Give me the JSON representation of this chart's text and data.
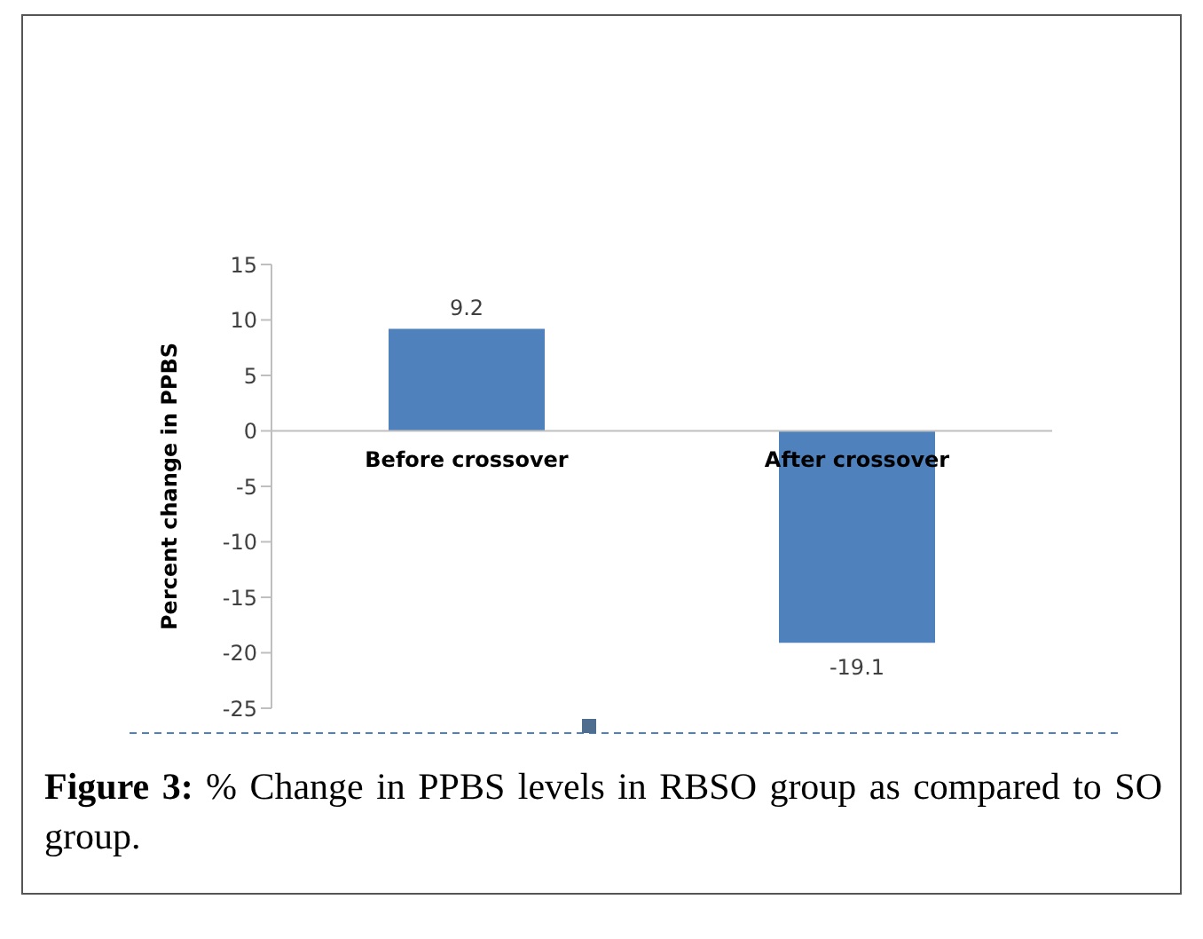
{
  "chart_data": {
    "type": "bar",
    "ylabel": "Percent change in PPBS",
    "categories": [
      "Before crossover",
      "After crossover"
    ],
    "values": [
      9.2,
      -19.1
    ],
    "color": "#4f81bd",
    "ylim": [
      -25,
      15
    ],
    "yticks": [
      -25,
      -20,
      -15,
      -10,
      -5,
      0,
      5,
      10,
      15
    ],
    "data_labels": true,
    "annotations": [
      "Figure 3: % Change in PPBS levels in RBSO group as compared to SO group."
    ]
  }
}
